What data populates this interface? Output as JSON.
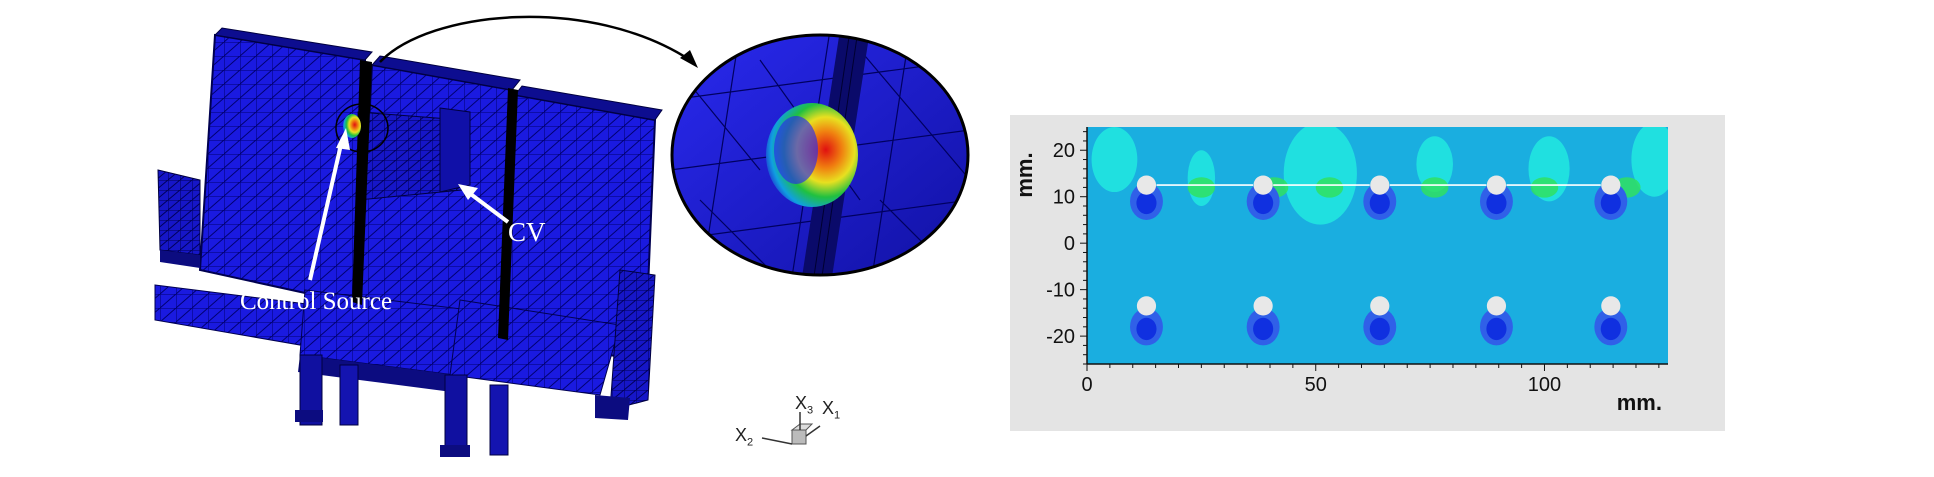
{
  "left_figure": {
    "labels": {
      "control_source": "Control Source",
      "cv": "CV"
    },
    "axis_triad": {
      "x1": "X",
      "x1_sub": "1",
      "x2": "X",
      "x2_sub": "2",
      "x3": "X",
      "x3_sub": "3"
    },
    "colors": {
      "mesh_blue": "#1a1ae0",
      "mesh_line": "#000060",
      "hot": "#e01010",
      "warm": "#f0e000",
      "mid": "#20c040",
      "cool": "#00c0f0"
    }
  },
  "chart_data": {
    "type": "heatmap",
    "title": "",
    "xlabel": "mm.",
    "ylabel": "mm.",
    "xlim": [
      0,
      127
    ],
    "ylim": [
      -26,
      25
    ],
    "x_ticks": [
      0,
      50,
      100
    ],
    "y_ticks": [
      20,
      10,
      0,
      -10,
      -20
    ],
    "grid": false,
    "colors": {
      "background": "#1aaee0",
      "light": "#20e0e0",
      "mid": "#3060e8",
      "dark": "#1030e0",
      "green": "#30e060",
      "hole": "#e8e8e8",
      "frame": "#e4e4e4"
    },
    "holes_top_row": [
      {
        "x": 13,
        "y": 12.5
      },
      {
        "x": 38.5,
        "y": 12.5
      },
      {
        "x": 64,
        "y": 12.5
      },
      {
        "x": 89.5,
        "y": 12.5
      },
      {
        "x": 114.5,
        "y": 12.5
      }
    ],
    "holes_bottom_row": [
      {
        "x": 13,
        "y": -13.5
      },
      {
        "x": 38.5,
        "y": -13.5
      },
      {
        "x": 64,
        "y": -13.5
      },
      {
        "x": 89.5,
        "y": -13.5
      },
      {
        "x": 114.5,
        "y": -13.5
      }
    ],
    "green_spots": [
      {
        "x": 25,
        "y": 12
      },
      {
        "x": 41,
        "y": 12
      },
      {
        "x": 53,
        "y": 12
      },
      {
        "x": 76,
        "y": 12
      },
      {
        "x": 100,
        "y": 12
      },
      {
        "x": 118,
        "y": 12
      }
    ]
  }
}
